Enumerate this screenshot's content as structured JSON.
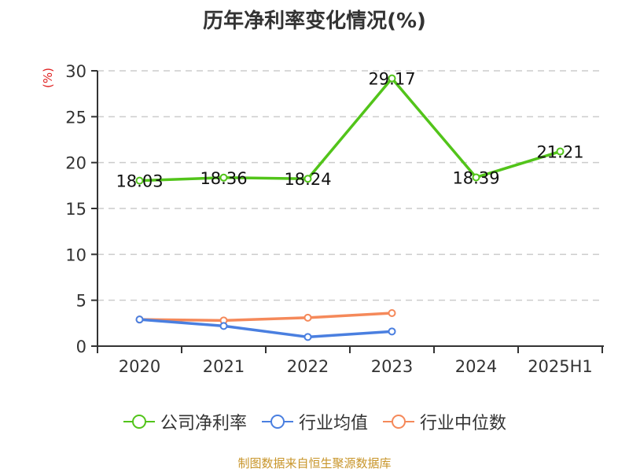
{
  "title": "历年净利率变化情况(%)",
  "ylabel": "(%)",
  "footer": "制图数据来自恒生聚源数据库",
  "legend": [
    {
      "label": "公司净利率",
      "color": "#52c41a"
    },
    {
      "label": "行业均值",
      "color": "#4a7fe0"
    },
    {
      "label": "行业中位数",
      "color": "#f5895a"
    }
  ],
  "chart_data": {
    "type": "line",
    "title": "历年净利率变化情况(%)",
    "xlabel": "",
    "ylabel": "(%)",
    "categories": [
      "2020",
      "2021",
      "2022",
      "2023",
      "2024",
      "2025H1"
    ],
    "ylim": [
      0,
      30
    ],
    "yticks": [
      0,
      5,
      10,
      15,
      20,
      25,
      30
    ],
    "grid": true,
    "legend_position": "bottom",
    "series": [
      {
        "name": "公司净利率",
        "color": "#52c41a",
        "values": [
          18.03,
          18.36,
          18.24,
          29.17,
          18.39,
          21.21
        ],
        "labels": [
          "18.03",
          "18.36",
          "18.24",
          "29.17",
          "18.39",
          "21.21"
        ]
      },
      {
        "name": "行业均值",
        "color": "#4a7fe0",
        "values": [
          2.9,
          2.2,
          1.0,
          1.6,
          null,
          null
        ]
      },
      {
        "name": "行业中位数",
        "color": "#f5895a",
        "values": [
          2.9,
          2.8,
          3.1,
          3.6,
          null,
          null
        ]
      }
    ]
  }
}
